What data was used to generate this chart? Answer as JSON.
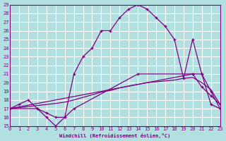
{
  "xlabel": "Windchill (Refroidissement éolien,°C)",
  "bg_color": "#b2e0e0",
  "grid_color": "#ffffff",
  "line_color": "#800080",
  "xlim": [
    0,
    23
  ],
  "ylim": [
    15,
    29
  ],
  "xticks": [
    0,
    1,
    2,
    3,
    4,
    5,
    6,
    7,
    8,
    9,
    10,
    11,
    12,
    13,
    14,
    15,
    16,
    17,
    18,
    19,
    20,
    21,
    22,
    23
  ],
  "yticks": [
    15,
    16,
    17,
    18,
    19,
    20,
    21,
    22,
    23,
    24,
    25,
    26,
    27,
    28,
    29
  ],
  "line1_x": [
    0,
    1,
    2,
    3,
    4,
    5,
    6,
    7,
    8,
    9,
    10,
    11,
    12,
    13,
    14,
    15,
    16,
    17,
    18,
    19,
    20,
    21,
    22,
    23
  ],
  "line1_y": [
    17,
    17.5,
    18,
    17,
    16,
    15,
    16,
    21,
    23,
    24,
    26,
    26,
    27.5,
    28.5,
    29,
    28.5,
    27.5,
    26.5,
    25,
    20.5,
    25,
    21,
    19,
    17
  ],
  "line2_x": [
    0,
    3,
    4,
    5,
    6,
    7,
    14,
    20,
    21,
    22,
    23
  ],
  "line2_y": [
    17,
    17,
    16.5,
    16,
    16,
    17,
    21,
    21,
    21,
    17.5,
    17
  ],
  "line3_x": [
    0,
    23
  ],
  "line3_y": [
    17,
    17
  ],
  "line3b_x": [
    0,
    20,
    21,
    22,
    23
  ],
  "line3b_y": [
    17,
    21,
    19.5,
    18.5,
    17.5
  ],
  "line_straight_x": [
    0,
    1,
    2,
    3,
    4,
    5,
    6,
    7,
    8,
    9,
    10,
    11,
    12,
    13,
    14,
    15,
    16,
    17,
    18,
    19,
    20,
    21,
    22,
    23
  ],
  "line_straight_y": [
    17,
    17.12,
    17.24,
    17.36,
    17.48,
    17.6,
    17.75,
    18.0,
    18.3,
    18.6,
    18.9,
    19.1,
    19.4,
    19.6,
    19.8,
    20.0,
    20.1,
    20.2,
    20.3,
    20.5,
    20.6,
    20.0,
    19.2,
    17.5
  ]
}
